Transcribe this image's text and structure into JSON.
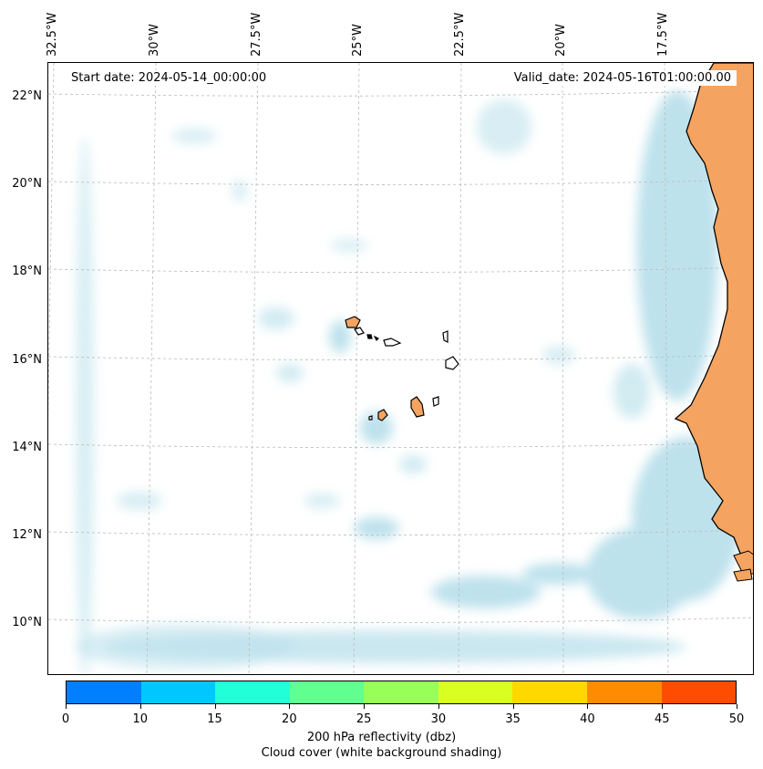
{
  "header": {
    "start_date": "Start date: 2024-05-14_00:00:00",
    "valid_date": "Valid_date: 2024-05-16T01:00:00.00"
  },
  "map": {
    "longitude_labels": [
      "32.5°W",
      "30°W",
      "27.5°W",
      "25°W",
      "22.5°W",
      "20°W",
      "17.5°W"
    ],
    "latitude_labels": [
      "22°N",
      "20°N",
      "18°N",
      "16°N",
      "14°N",
      "12°N",
      "10°N"
    ],
    "colors": {
      "land": "#f4a460",
      "cloud": "#a8d8e6",
      "gridline": "#bbbbbb",
      "coastline": "#000000"
    },
    "features": [
      "Cape Verde islands",
      "West African coastline"
    ]
  },
  "colorbar": {
    "ticks": [
      "0",
      "10",
      "15",
      "20",
      "25",
      "30",
      "35",
      "40",
      "45",
      "50"
    ],
    "colors": [
      "#0080ff",
      "#00c8ff",
      "#20ffd8",
      "#60ff90",
      "#98ff58",
      "#d8ff20",
      "#ffd800",
      "#ff8c00",
      "#ff4c00"
    ],
    "label_line1": "200 hPa reflectivity (dbz)",
    "label_line2": "Cloud cover (white background shading)"
  }
}
